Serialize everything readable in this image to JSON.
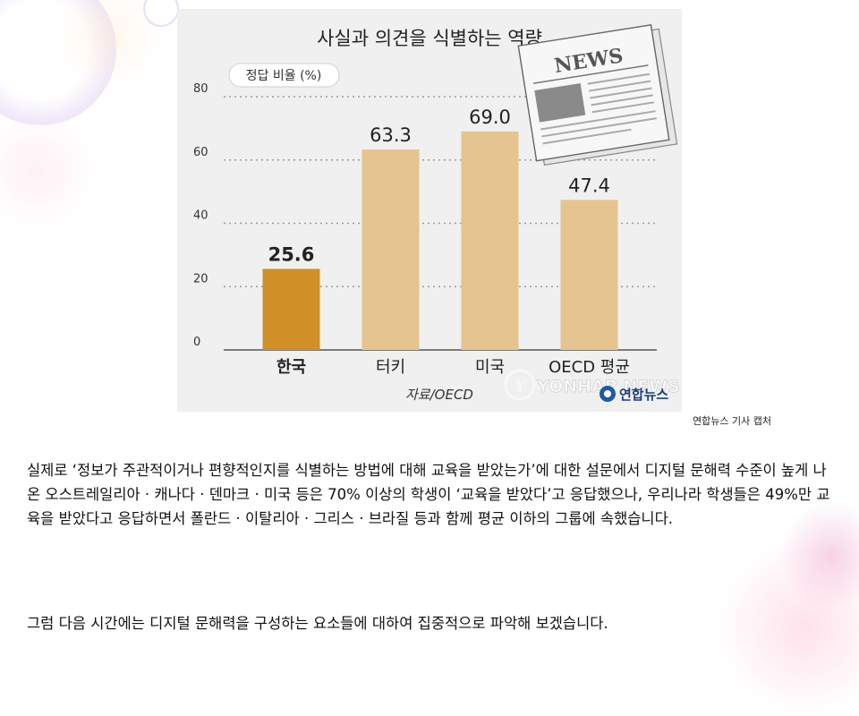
{
  "chart_data": {
    "type": "bar",
    "title": "사실과 의견을 식별하는 역량",
    "ylabel": "정답 비율 (%)",
    "categories": [
      "한국",
      "터키",
      "미국",
      "OECD 평균"
    ],
    "values": [
      25.6,
      63.3,
      69.0,
      47.4
    ],
    "value_labels": [
      "25.6",
      "63.3",
      "69.0",
      "47.4"
    ],
    "ylim": [
      0,
      80
    ],
    "yticks": [
      0,
      20,
      40,
      60,
      80
    ],
    "grid": true,
    "source": "자료/OECD",
    "colors": {
      "highlight": "#d18f28",
      "default": "#e5c48f"
    }
  },
  "newspaper": {
    "headline": "NEWS"
  },
  "watermark": {
    "latin": "YONHAP NEWS",
    "korean": "연합뉴스"
  },
  "credit": "연합뉴스 기사 캡처",
  "paragraphs": [
    "실제로 ‘정보가 주관적이거나 편향적인지를 식별하는 방법에 대해 교육을 받았는가’에 대한 설문에서 디지털 문해력 수준이 높게 나온 오스트레일리아 · 캐나다 · 덴마크 · 미국 등은 70% 이상의 학생이 ‘교육을 받았다’고 응답했으나, 우리나라 학생들은 49%만 교육을 받았다고 응답하면서 폴란드 · 이탈리아 · 그리스 · 브라질 등과 함께 평균 이하의 그룹에 속했습니다.",
    "그럼 다음 시간에는 디지털 문해력을 구성하는 요소들에 대하여 집중적으로 파악해 보겠습니다."
  ]
}
